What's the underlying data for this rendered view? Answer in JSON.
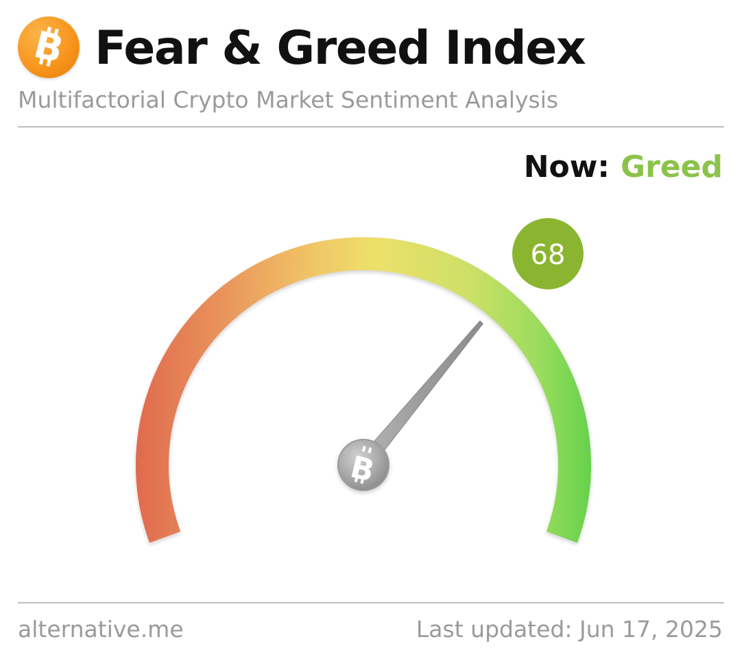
{
  "header": {
    "title": "Fear & Greed Index",
    "subtitle": "Multifactorial Crypto Market Sentiment Analysis",
    "logo_icon": "bitcoin-icon"
  },
  "status": {
    "now_label": "Now:",
    "now_value": "Greed",
    "now_color": "#8bc34a"
  },
  "gauge": {
    "value": 68,
    "value_text": "68",
    "min": 0,
    "max": 100,
    "badge_color": "#8bb530",
    "needle_icon": "bitcoin-icon",
    "colors": {
      "fear": "#e06b4f",
      "neutral": "#ede06a",
      "greed": "#6ad550"
    }
  },
  "footer": {
    "source": "alternative.me",
    "last_updated": "Last updated: Jun 17, 2025"
  }
}
